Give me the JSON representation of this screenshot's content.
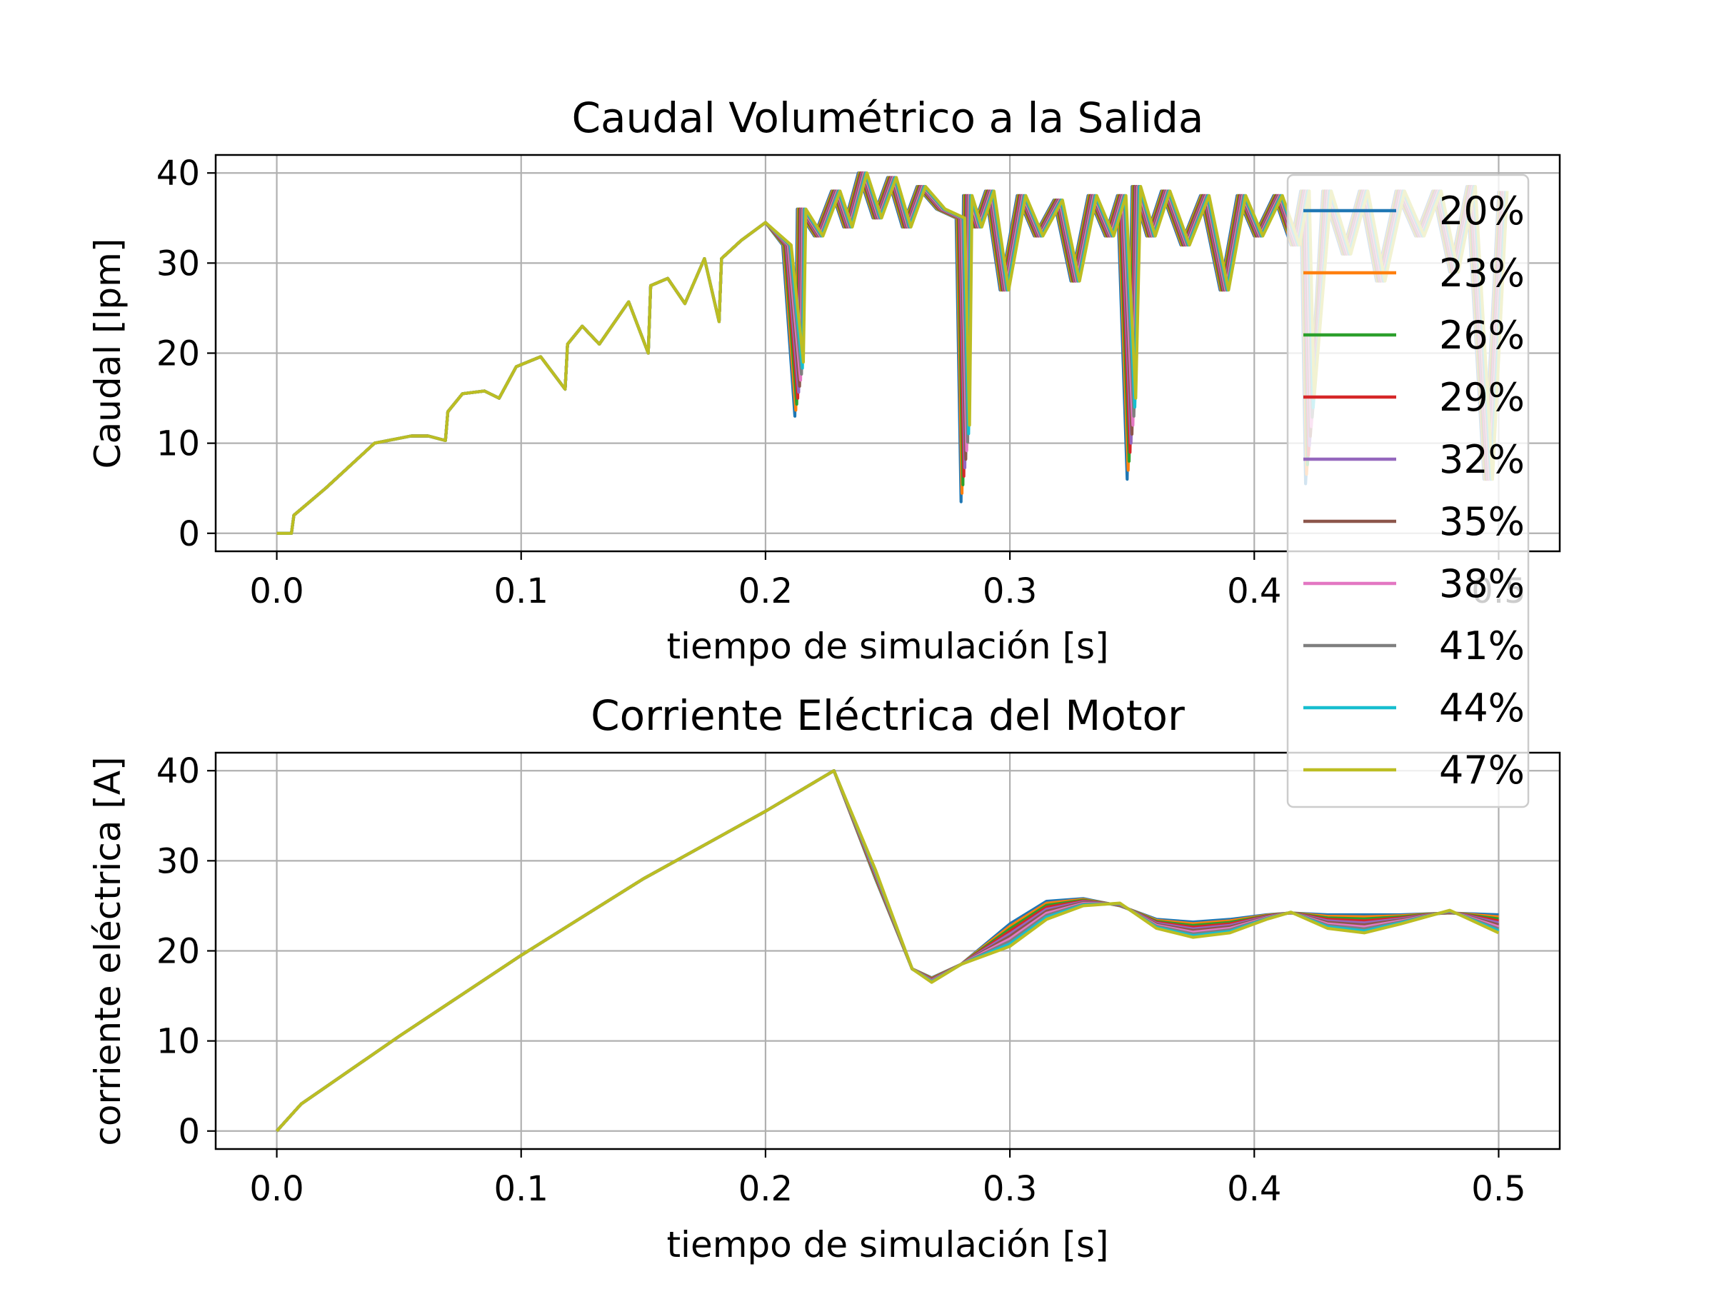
{
  "legend_position": "right, spanning both panels",
  "chart_data": [
    {
      "type": "line",
      "title": "Caudal Volumétrico a la Salida",
      "xlabel": "tiempo de simulación [s]",
      "ylabel": "Caudal [lpm]",
      "xlim": [
        -0.025,
        0.525
      ],
      "ylim": [
        -2,
        42
      ],
      "xticks": [
        "0.0",
        "0.1",
        "0.2",
        "0.3",
        "0.4",
        "0.5"
      ],
      "yticks": [
        "0",
        "10",
        "20",
        "30",
        "40"
      ],
      "grid": true,
      "series_names": [
        "20%",
        "23%",
        "26%",
        "29%",
        "32%",
        "35%",
        "38%",
        "41%",
        "44%",
        "47%"
      ],
      "colors": [
        "#1f77b4",
        "#ff7f0e",
        "#2ca02c",
        "#d62728",
        "#9467bd",
        "#8c564b",
        "#e377c2",
        "#7f7f7f",
        "#17becf",
        "#bcbd22"
      ],
      "x": [
        0,
        0.006,
        0.007,
        0.02,
        0.04,
        0.055,
        0.062,
        0.069,
        0.07,
        0.076,
        0.085,
        0.091,
        0.098,
        0.108,
        0.118,
        0.119,
        0.125,
        0.132,
        0.144,
        0.152,
        0.153,
        0.16,
        0.167,
        0.175,
        0.181,
        0.182,
        0.19,
        0.2,
        0.207,
        0.212,
        0.213,
        0.22,
        0.227,
        0.232,
        0.238,
        0.244,
        0.25,
        0.256,
        0.262,
        0.27,
        0.278,
        0.28,
        0.281,
        0.285,
        0.29,
        0.296,
        0.303,
        0.31,
        0.318,
        0.325,
        0.332,
        0.339,
        0.344,
        0.348,
        0.35,
        0.356,
        0.362,
        0.37,
        0.378,
        0.386,
        0.393,
        0.4,
        0.408,
        0.415,
        0.419,
        0.421,
        0.428,
        0.436,
        0.443,
        0.45,
        0.458,
        0.466,
        0.473,
        0.48,
        0.487,
        0.494,
        0.5
      ],
      "y": [
        0,
        0,
        2,
        5,
        10,
        10.8,
        10.8,
        10.3,
        13.5,
        15.5,
        15.8,
        15,
        18.5,
        19.6,
        16,
        21,
        23,
        21,
        25.7,
        20,
        27.5,
        28.3,
        25.5,
        30.5,
        23.5,
        30.5,
        32.5,
        34.5,
        32,
        13,
        36,
        33,
        38,
        34,
        40,
        35,
        39.5,
        34,
        38.5,
        36,
        35,
        3.5,
        37.5,
        34,
        38,
        27,
        37.5,
        33,
        37,
        28,
        37.5,
        33,
        37.5,
        6,
        38.5,
        33,
        38,
        32,
        37.5,
        27,
        37.5,
        33,
        37.5,
        32,
        38,
        5.5,
        38,
        31,
        38,
        28,
        38,
        33,
        38,
        29,
        38.5,
        6,
        38
      ],
      "series_dips": [
        {
          "name": "20%",
          "dips": [
            13,
            3.5,
            6,
            5.5
          ]
        },
        {
          "name": "47%",
          "dips": [
            19,
            12,
            15,
            15
          ]
        }
      ]
    },
    {
      "type": "line",
      "title": "Corriente Eléctrica del Motor",
      "xlabel": "tiempo de simulación [s]",
      "ylabel": "corriente eléctrica [A]",
      "xlim": [
        -0.025,
        0.525
      ],
      "ylim": [
        -2,
        42
      ],
      "xticks": [
        "0.0",
        "0.1",
        "0.2",
        "0.3",
        "0.4",
        "0.5"
      ],
      "yticks": [
        "0",
        "10",
        "20",
        "30",
        "40"
      ],
      "grid": true,
      "series": [
        {
          "name": "20%",
          "x": [
            0,
            0.01,
            0.05,
            0.1,
            0.15,
            0.2,
            0.228,
            0.245,
            0.26,
            0.268,
            0.28,
            0.3,
            0.315,
            0.33,
            0.345,
            0.36,
            0.375,
            0.39,
            0.405,
            0.415,
            0.43,
            0.445,
            0.46,
            0.48,
            0.5
          ],
          "y": [
            0,
            3,
            10.5,
            19.5,
            28,
            35.5,
            40,
            28,
            18,
            17,
            18.5,
            23,
            25.5,
            25.8,
            25,
            23.5,
            23.2,
            23.5,
            24,
            24.2,
            24,
            24,
            24,
            24.2,
            24
          ]
        },
        {
          "name": "47%",
          "x": [
            0,
            0.01,
            0.05,
            0.1,
            0.15,
            0.2,
            0.228,
            0.245,
            0.26,
            0.268,
            0.28,
            0.3,
            0.315,
            0.33,
            0.345,
            0.36,
            0.375,
            0.39,
            0.405,
            0.415,
            0.43,
            0.445,
            0.46,
            0.48,
            0.5
          ],
          "y": [
            0,
            3,
            10.5,
            19.5,
            28,
            35.5,
            40,
            29,
            18,
            16.5,
            18.5,
            20.5,
            23.5,
            25,
            25.3,
            22.5,
            21.5,
            22,
            23.5,
            24.3,
            22.5,
            22,
            23,
            24.5,
            22
          ]
        }
      ]
    }
  ]
}
